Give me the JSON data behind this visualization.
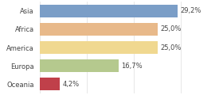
{
  "categories": [
    "Asia",
    "Africa",
    "America",
    "Europa",
    "Oceania"
  ],
  "values": [
    29.2,
    25.0,
    25.0,
    16.7,
    4.2
  ],
  "labels": [
    "29,2%",
    "25,0%",
    "25,0%",
    "16,7%",
    "4,2%"
  ],
  "bar_colors": [
    "#7b9ec7",
    "#e8b98a",
    "#f0d890",
    "#b5c98e",
    "#c0404a"
  ],
  "background_color": "#ffffff",
  "xlim": [
    0,
    38
  ],
  "bar_height": 0.72,
  "label_fontsize": 6.0,
  "tick_fontsize": 6.0,
  "grid_color": "#dddddd",
  "label_color": "#444444",
  "tick_color": "#444444"
}
